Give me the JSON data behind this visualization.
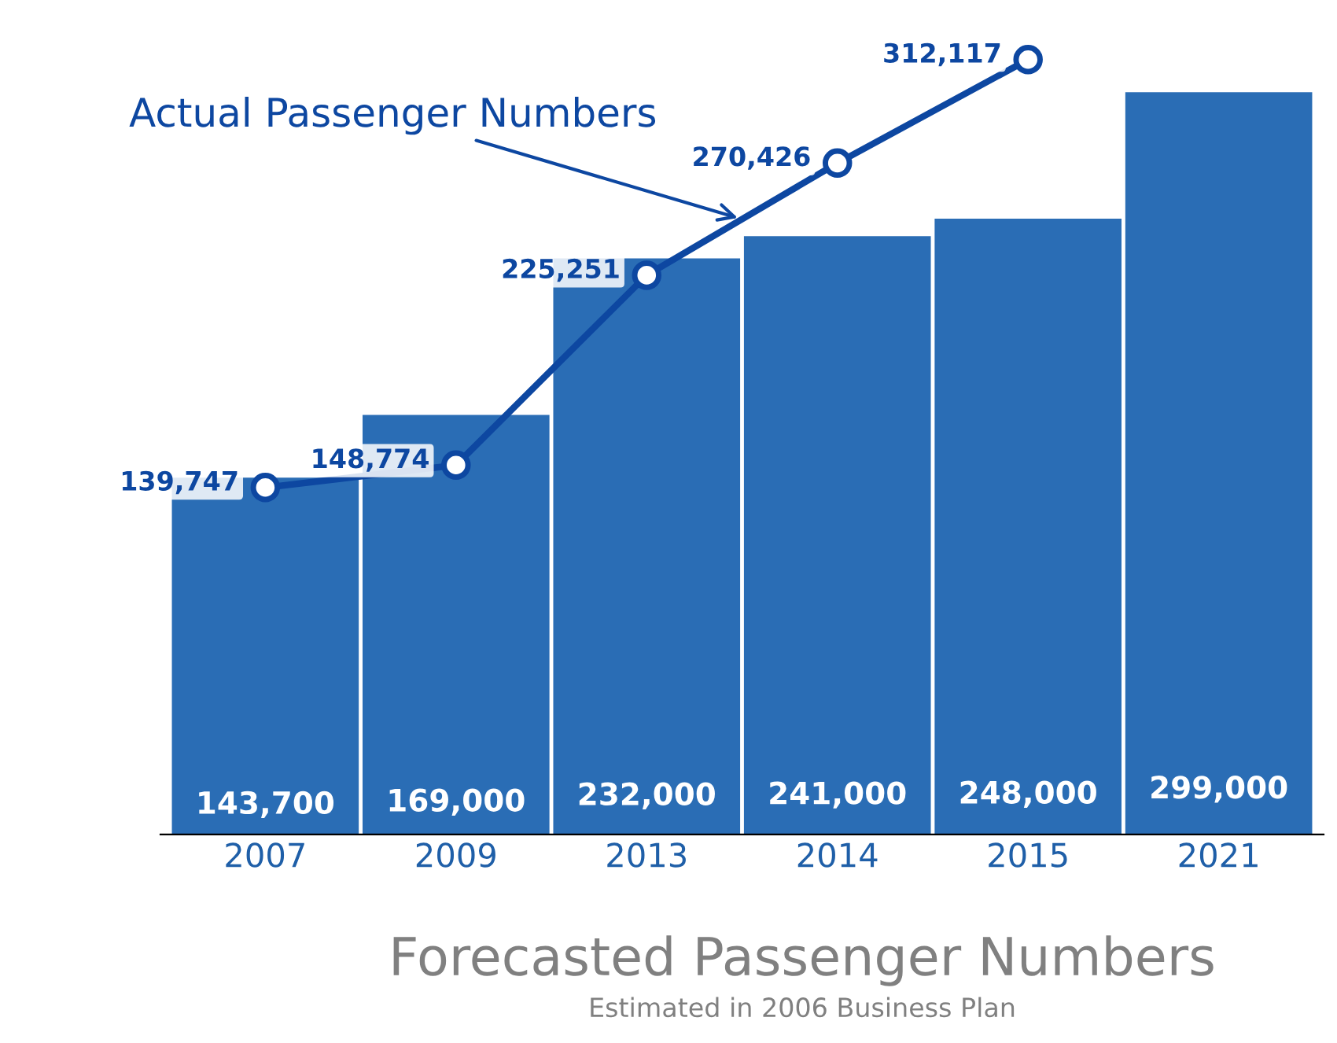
{
  "chart_data": {
    "type": "bar",
    "title": "Forecasted Passenger Numbers",
    "subtitle": "Estimated in 2006 Business Plan",
    "categories": [
      "2007",
      "2009",
      "2013",
      "2014",
      "2015",
      "2021"
    ],
    "series": [
      {
        "color": "#2a6db5",
        "values": [
          143700,
          169000,
          232000,
          241000,
          248000,
          299000
        ],
        "value_labels": [
          "143,700",
          "169,000",
          "232,000",
          "241,000",
          "248,000",
          "299,000"
        ]
      },
      {
        "type": "line",
        "name": "Actual Passenger Numbers",
        "color": "#0d47a1",
        "values": [
          139747,
          148774,
          225251,
          270426,
          312117,
          null
        ],
        "value_labels": [
          "139,747",
          "148,774",
          "225,251",
          "270,426",
          "312,117",
          null
        ]
      }
    ],
    "marker": "circle",
    "line_style": "solid",
    "grid": false
  }
}
